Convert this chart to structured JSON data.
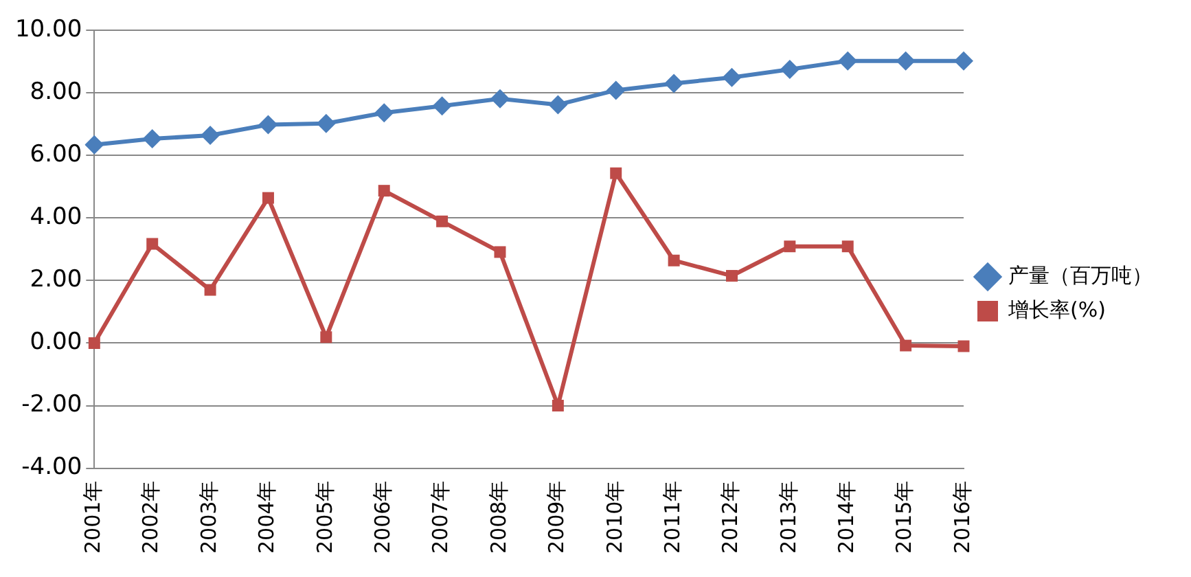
{
  "chart_data": {
    "type": "line",
    "categories": [
      "2001年",
      "2002年",
      "2003年",
      "2004年",
      "2005年",
      "2006年",
      "2007年",
      "2008年",
      "2009年",
      "2010年",
      "2011年",
      "2012年",
      "2013年",
      "2014年",
      "2015年",
      "2016年"
    ],
    "series": [
      {
        "name": "产量（百万吨）",
        "color": "#4a7ebb",
        "marker": "diamond",
        "values": [
          6.34,
          6.53,
          6.64,
          6.98,
          7.02,
          7.36,
          7.58,
          7.81,
          7.62,
          8.08,
          8.3,
          8.49,
          8.75,
          9.02,
          9.02,
          9.02
        ]
      },
      {
        "name": "增长率(%)",
        "color": "#be4b48",
        "marker": "square",
        "values": [
          0,
          3.17,
          1.7,
          4.64,
          0.19,
          4.87,
          3.89,
          2.91,
          -2,
          5.43,
          2.64,
          2.15,
          3.09,
          3.09,
          -0.08,
          -0.1
        ]
      }
    ],
    "ylim": [
      -4,
      10
    ],
    "yticks": [
      {
        "value": -4,
        "label": "-4.00"
      },
      {
        "value": -2,
        "label": "-2.00"
      },
      {
        "value": 0,
        "label": "0.00"
      },
      {
        "value": 2,
        "label": "2.00"
      },
      {
        "value": 4,
        "label": "4.00"
      },
      {
        "value": 6,
        "label": "6.00"
      },
      {
        "value": 8,
        "label": "8.00"
      },
      {
        "value": 10,
        "label": "10.00"
      }
    ],
    "grid": "y",
    "legend": "right",
    "line_style": "solid"
  }
}
